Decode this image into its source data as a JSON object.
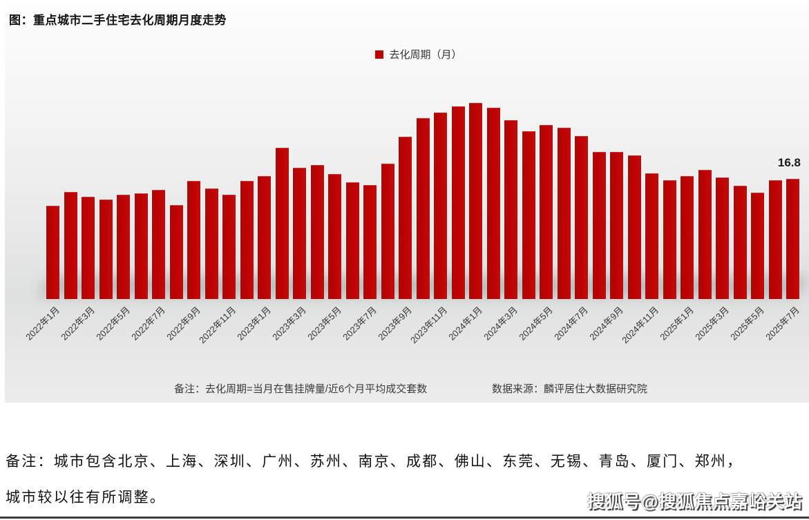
{
  "figure": {
    "title": "图：重点城市二手住宅去化周期月度走势",
    "legend": "去化周期（月）",
    "note_left": "备注：去化周期=当月在售挂牌量/近6个月平均成交套数",
    "note_right": "数据来源：麟评居住大数据研究院",
    "last_value_label": "16.8"
  },
  "chart_data": {
    "type": "bar",
    "title": "图：重点城市二手住宅去化周期月度走势",
    "series_name": "去化周期（月）",
    "ylabel": "去化周期（月）",
    "xlabel": "",
    "ylim": [
      0,
      30
    ],
    "grid": false,
    "legend_position": "top-center",
    "bar_color": "#c00000",
    "annotation": {
      "text": "16.8",
      "category": "2025年7月"
    },
    "categories": [
      "2022年1月",
      "2022年2月",
      "2022年3月",
      "2022年4月",
      "2022年5月",
      "2022年6月",
      "2022年7月",
      "2022年8月",
      "2022年9月",
      "2022年10月",
      "2022年11月",
      "2022年12月",
      "2023年1月",
      "2023年2月",
      "2023年3月",
      "2023年4月",
      "2023年5月",
      "2023年6月",
      "2023年7月",
      "2023年8月",
      "2023年9月",
      "2023年10月",
      "2023年11月",
      "2023年12月",
      "2024年1月",
      "2024年2月",
      "2024年3月",
      "2024年4月",
      "2024年5月",
      "2024年6月",
      "2024年7月",
      "2024年8月",
      "2024年9月",
      "2024年10月",
      "2024年11月",
      "2024年12月",
      "2025年1月",
      "2025年2月",
      "2025年3月",
      "2025年4月",
      "2025年5月",
      "2025年6月",
      "2025年7月"
    ],
    "values": [
      13.0,
      15.0,
      14.3,
      13.9,
      14.6,
      14.8,
      15.3,
      13.1,
      16.5,
      15.5,
      14.6,
      16.5,
      17.2,
      21.2,
      18.4,
      18.7,
      17.5,
      16.3,
      15.9,
      18.9,
      22.7,
      25.3,
      26.1,
      27.0,
      27.4,
      26.8,
      25.0,
      23.5,
      24.3,
      24.0,
      22.8,
      20.6,
      20.6,
      20.1,
      17.6,
      16.6,
      17.2,
      18.1,
      17.0,
      15.8,
      14.9,
      16.6,
      16.8
    ],
    "x_tick_labels": [
      "2022年1月",
      "2022年3月",
      "2022年5月",
      "2022年7月",
      "2022年9月",
      "2022年11月",
      "2023年1月",
      "2023年3月",
      "2023年5月",
      "2023年7月",
      "2023年9月",
      "2023年11月",
      "2024年1月",
      "2024年3月",
      "2024年5月",
      "2024年7月",
      "2024年9月",
      "2024年11月",
      "2025年1月",
      "2025年3月",
      "2025年5月",
      "2025年7月"
    ]
  },
  "footer": {
    "line1": "备注：城市包含北京、上海、深圳、广州、苏州、南京、成都、佛山、东莞、无锡、青岛、厦门、郑州，",
    "line2": "城市较以往有所调整。",
    "watermark": "搜狐号@搜狐焦点嘉峪关站"
  }
}
